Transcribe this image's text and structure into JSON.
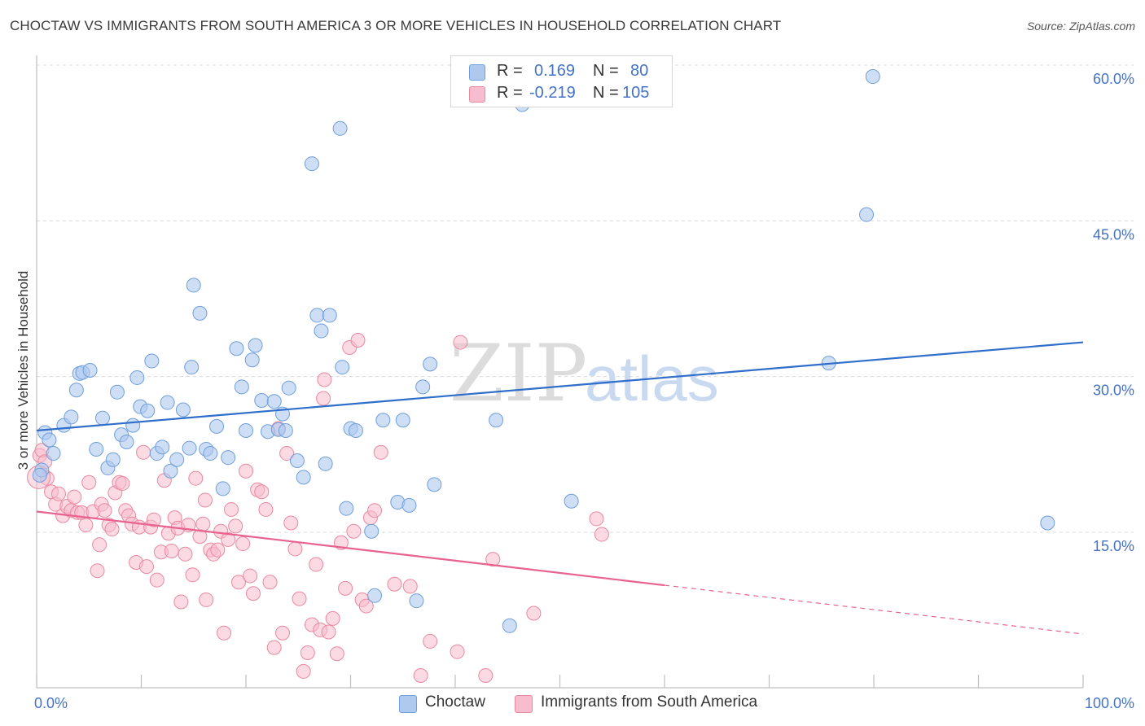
{
  "title": "CHOCTAW VS IMMIGRANTS FROM SOUTH AMERICA 3 OR MORE VEHICLES IN HOUSEHOLD CORRELATION CHART",
  "source": "Source: ZipAtlas.com",
  "watermark": {
    "zip": "ZIP",
    "atlas": "atlas"
  },
  "legend": {
    "rows": [
      {
        "r_label": "R =",
        "r_value": "0.169",
        "n_label": "N =",
        "n_value": "80",
        "color": "#aec8ee",
        "border": "#6f9fdc"
      },
      {
        "r_label": "R =",
        "r_value": "-0.219",
        "n_label": "N =",
        "n_value": "105",
        "color": "#f7bccd",
        "border": "#e9899f"
      }
    ]
  },
  "bottom_legend": [
    {
      "label": "Choctaw",
      "color": "#aec8ee",
      "border": "#6f9fdc"
    },
    {
      "label": "Immigrants from South America",
      "color": "#f7bccd",
      "border": "#e9899f"
    }
  ],
  "colors": {
    "blue_line": "#2f6fcb",
    "pink_line": "#e8628f",
    "tick_label": "#4472c4",
    "grid": "#d9d9d9"
  },
  "chart_data": {
    "type": "scatter",
    "title": "CHOCTAW VS IMMIGRANTS FROM SOUTH AMERICA 3 OR MORE VEHICLES IN HOUSEHOLD CORRELATION CHART",
    "xlabel": "",
    "ylabel": "3 or more Vehicles in Household",
    "xlim": [
      0,
      100
    ],
    "ylim": [
      0,
      64
    ],
    "x_tick_labels": [
      "0.0%",
      "100.0%"
    ],
    "y_ticks": [
      15,
      30,
      45,
      60
    ],
    "y_tick_labels": [
      "15.0%",
      "30.0%",
      "45.0%",
      "60.0%"
    ],
    "grid": true,
    "legend_position": "top-center",
    "series": [
      {
        "name": "Choctaw",
        "color": "#aec8ee",
        "edge": "#6f9fdc",
        "trend": {
          "x": [
            0,
            100
          ],
          "y": [
            24.8,
            33.3
          ],
          "style": "solid"
        },
        "points": [
          [
            0.5,
            21.0
          ],
          [
            0.8,
            24.6
          ],
          [
            1.2,
            23.9
          ],
          [
            1.6,
            22.6
          ],
          [
            2.6,
            25.3
          ],
          [
            3.3,
            26.1
          ],
          [
            3.8,
            28.7
          ],
          [
            4.1,
            30.3
          ],
          [
            4.4,
            30.4
          ],
          [
            5.1,
            30.6
          ],
          [
            5.7,
            23.0
          ],
          [
            6.3,
            26.0
          ],
          [
            6.8,
            21.2
          ],
          [
            7.3,
            22.0
          ],
          [
            7.7,
            28.5
          ],
          [
            8.1,
            24.4
          ],
          [
            8.6,
            23.7
          ],
          [
            9.2,
            25.3
          ],
          [
            9.6,
            29.9
          ],
          [
            9.9,
            27.1
          ],
          [
            10.6,
            26.7
          ],
          [
            11.0,
            31.5
          ],
          [
            11.5,
            22.6
          ],
          [
            12.0,
            23.2
          ],
          [
            12.5,
            27.5
          ],
          [
            12.8,
            20.9
          ],
          [
            13.4,
            22.0
          ],
          [
            14.0,
            26.8
          ],
          [
            14.6,
            23.1
          ],
          [
            14.8,
            30.9
          ],
          [
            15.6,
            36.1
          ],
          [
            16.2,
            23.0
          ],
          [
            16.6,
            22.6
          ],
          [
            17.2,
            25.2
          ],
          [
            17.8,
            19.2
          ],
          [
            18.3,
            22.2
          ],
          [
            19.1,
            32.7
          ],
          [
            19.6,
            29.0
          ],
          [
            20.0,
            24.8
          ],
          [
            20.6,
            31.6
          ],
          [
            20.9,
            33.0
          ],
          [
            21.5,
            27.7
          ],
          [
            22.1,
            24.7
          ],
          [
            22.7,
            27.6
          ],
          [
            23.1,
            24.9
          ],
          [
            23.5,
            26.4
          ],
          [
            23.8,
            24.8
          ],
          [
            24.1,
            28.9
          ],
          [
            24.9,
            21.9
          ],
          [
            25.5,
            20.3
          ],
          [
            26.3,
            50.5
          ],
          [
            26.8,
            35.9
          ],
          [
            27.2,
            34.4
          ],
          [
            27.6,
            21.6
          ],
          [
            28.0,
            35.9
          ],
          [
            29.0,
            53.9
          ],
          [
            29.2,
            30.9
          ],
          [
            29.6,
            17.3
          ],
          [
            30.0,
            25.0
          ],
          [
            30.5,
            24.8
          ],
          [
            32.0,
            15.1
          ],
          [
            32.3,
            8.9
          ],
          [
            33.1,
            25.8
          ],
          [
            34.5,
            17.9
          ],
          [
            35.0,
            25.8
          ],
          [
            35.6,
            17.6
          ],
          [
            36.3,
            8.4
          ],
          [
            36.9,
            29.0
          ],
          [
            37.6,
            31.2
          ],
          [
            38.0,
            19.6
          ],
          [
            43.9,
            25.8
          ],
          [
            45.2,
            6.0
          ],
          [
            46.4,
            56.2
          ],
          [
            51.1,
            18.0
          ],
          [
            15.0,
            38.8
          ],
          [
            75.7,
            31.3
          ],
          [
            79.3,
            45.6
          ],
          [
            79.9,
            58.9
          ],
          [
            96.6,
            15.9
          ],
          [
            0.3,
            20.5
          ]
        ]
      },
      {
        "name": "Immigrants from South America",
        "color": "#f7bccd",
        "edge": "#e9899f",
        "trend": {
          "x": [
            0,
            60
          ],
          "y": [
            17.0,
            9.9
          ],
          "x_dashed": [
            60,
            100
          ],
          "y_dashed": [
            9.9,
            5.2
          ],
          "style": "solid-then-dashed"
        },
        "points": [
          [
            0.3,
            22.4
          ],
          [
            0.5,
            22.9
          ],
          [
            0.8,
            21.8
          ],
          [
            1.0,
            20.2
          ],
          [
            1.4,
            18.9
          ],
          [
            1.8,
            17.7
          ],
          [
            2.1,
            18.7
          ],
          [
            2.5,
            16.6
          ],
          [
            2.9,
            17.5
          ],
          [
            3.3,
            17.1
          ],
          [
            3.6,
            18.4
          ],
          [
            3.9,
            16.9
          ],
          [
            4.3,
            16.9
          ],
          [
            4.7,
            15.7
          ],
          [
            5.0,
            19.8
          ],
          [
            5.4,
            17.0
          ],
          [
            5.8,
            11.3
          ],
          [
            6.2,
            17.7
          ],
          [
            6.5,
            17.1
          ],
          [
            6.9,
            15.7
          ],
          [
            7.2,
            15.3
          ],
          [
            7.5,
            18.8
          ],
          [
            7.9,
            19.8
          ],
          [
            8.2,
            19.7
          ],
          [
            8.5,
            17.1
          ],
          [
            8.8,
            16.6
          ],
          [
            9.1,
            15.8
          ],
          [
            9.5,
            12.1
          ],
          [
            9.8,
            15.5
          ],
          [
            10.2,
            22.7
          ],
          [
            10.5,
            11.7
          ],
          [
            10.9,
            15.5
          ],
          [
            11.2,
            16.2
          ],
          [
            11.5,
            10.4
          ],
          [
            11.9,
            13.1
          ],
          [
            12.2,
            20.0
          ],
          [
            12.6,
            14.9
          ],
          [
            12.9,
            13.2
          ],
          [
            13.2,
            16.4
          ],
          [
            13.5,
            15.4
          ],
          [
            13.8,
            8.3
          ],
          [
            14.2,
            12.9
          ],
          [
            14.5,
            15.7
          ],
          [
            14.9,
            10.9
          ],
          [
            15.2,
            20.2
          ],
          [
            15.6,
            14.6
          ],
          [
            15.9,
            15.8
          ],
          [
            16.2,
            8.5
          ],
          [
            16.6,
            13.3
          ],
          [
            16.9,
            12.9
          ],
          [
            17.3,
            13.3
          ],
          [
            17.6,
            15.1
          ],
          [
            17.9,
            5.3
          ],
          [
            18.3,
            14.3
          ],
          [
            18.6,
            17.2
          ],
          [
            19.0,
            15.6
          ],
          [
            19.3,
            10.2
          ],
          [
            19.7,
            13.9
          ],
          [
            20.0,
            20.9
          ],
          [
            20.4,
            10.8
          ],
          [
            20.7,
            9.1
          ],
          [
            21.1,
            19.1
          ],
          [
            21.5,
            18.9
          ],
          [
            21.9,
            17.2
          ],
          [
            22.3,
            10.2
          ],
          [
            22.7,
            3.9
          ],
          [
            23.1,
            25.0
          ],
          [
            23.5,
            5.3
          ],
          [
            23.9,
            22.6
          ],
          [
            24.3,
            15.9
          ],
          [
            24.7,
            13.4
          ],
          [
            25.1,
            8.6
          ],
          [
            25.5,
            1.6
          ],
          [
            25.9,
            3.4
          ],
          [
            26.3,
            6.1
          ],
          [
            26.7,
            11.9
          ],
          [
            27.1,
            5.6
          ],
          [
            27.5,
            29.7
          ],
          [
            27.9,
            5.4
          ],
          [
            28.3,
            6.7
          ],
          [
            28.7,
            3.3
          ],
          [
            29.1,
            14.0
          ],
          [
            29.5,
            9.6
          ],
          [
            29.9,
            32.8
          ],
          [
            30.3,
            15.1
          ],
          [
            30.7,
            33.5
          ],
          [
            31.1,
            8.5
          ],
          [
            31.5,
            7.9
          ],
          [
            31.9,
            16.4
          ],
          [
            32.3,
            17.1
          ],
          [
            32.9,
            22.7
          ],
          [
            34.2,
            10.0
          ],
          [
            35.7,
            9.8
          ],
          [
            36.7,
            1.2
          ],
          [
            37.6,
            4.5
          ],
          [
            40.5,
            33.3
          ],
          [
            40.2,
            3.5
          ],
          [
            42.9,
            1.2
          ],
          [
            43.6,
            12.4
          ],
          [
            47.5,
            7.2
          ],
          [
            53.5,
            16.3
          ],
          [
            54.0,
            14.8
          ],
          [
            27.4,
            27.9
          ],
          [
            16.1,
            18.1
          ],
          [
            6.0,
            13.8
          ]
        ]
      }
    ]
  }
}
